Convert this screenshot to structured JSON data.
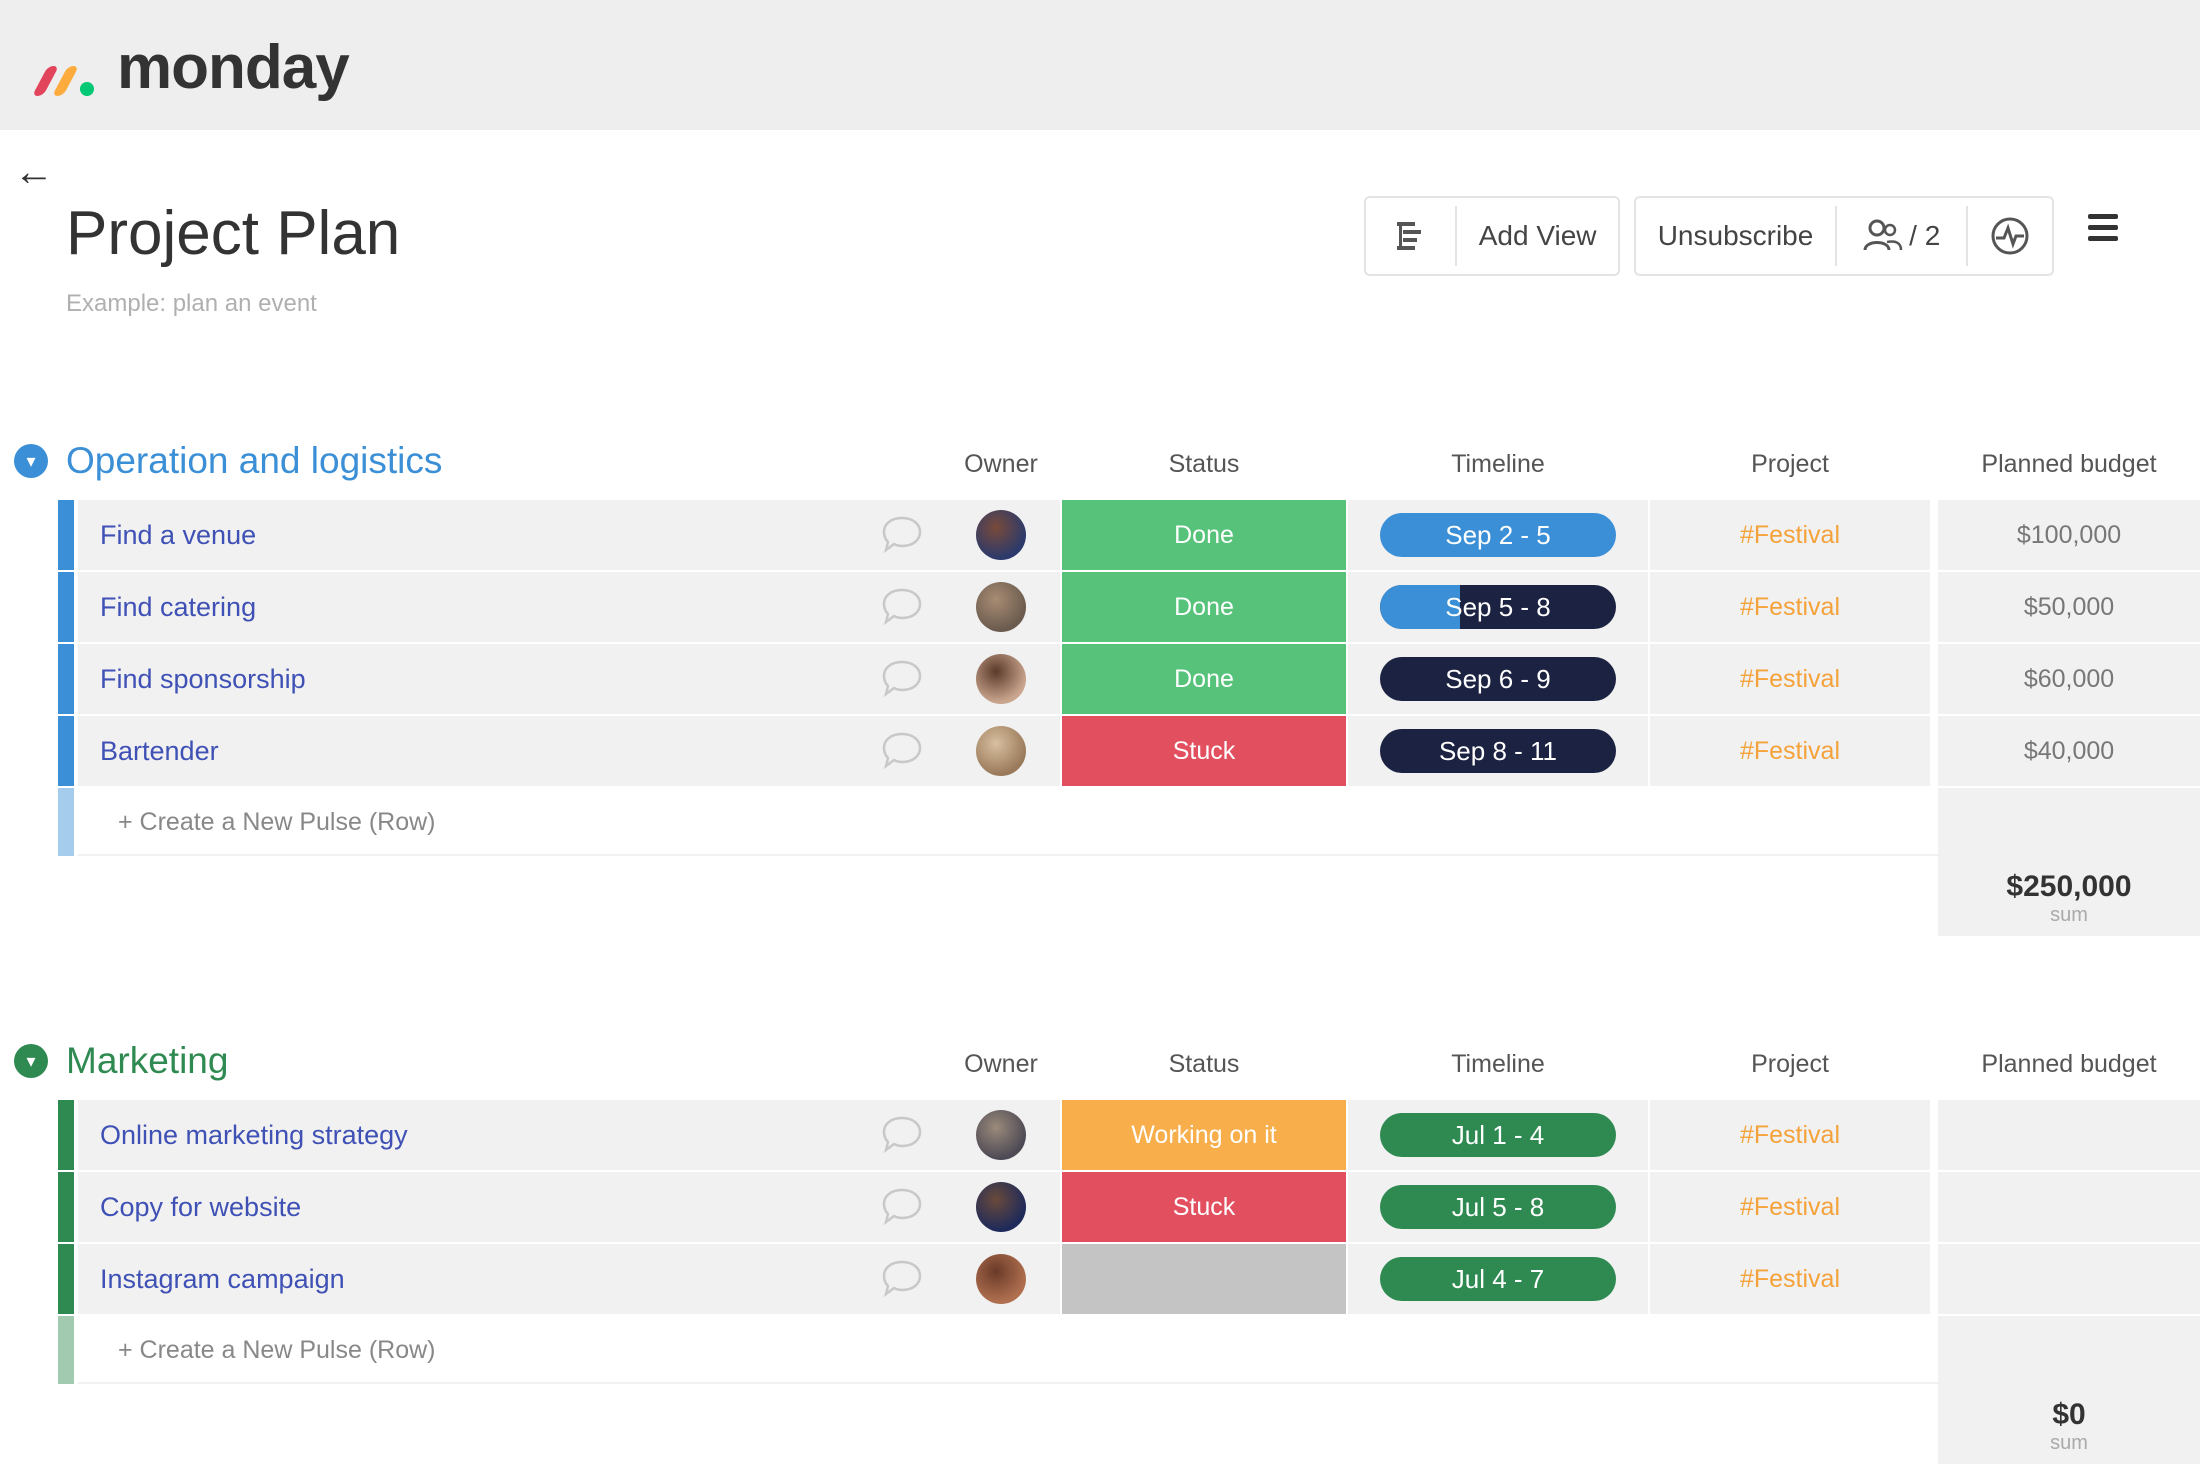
{
  "app": {
    "logo_text": "monday"
  },
  "header": {
    "back_label": "←",
    "title": "Project Plan",
    "subtitle": "Example: plan an event",
    "add_view_label": "Add View",
    "unsubscribe_label": "Unsubscribe",
    "members_label": "/ 2"
  },
  "columns": {
    "owner": "Owner",
    "status": "Status",
    "timeline": "Timeline",
    "project": "Project",
    "budget": "Planned budget"
  },
  "colors": {
    "done": "#57c27a",
    "stuck": "#e2505f",
    "working": "#f7ae4b",
    "empty": "#c4c4c4",
    "navy": "#1c2242",
    "blue": "#3a8fd6",
    "green": "#2f8a52",
    "group1": "#3a8fd6",
    "group2": "#2f8a52"
  },
  "groups": [
    {
      "title": "Operation and logistics",
      "rows": [
        {
          "name": "Find a venue",
          "status": "Done",
          "timeline": "Sep 2 - 5",
          "project": "#Festival",
          "budget": "$100,000"
        },
        {
          "name": "Find catering",
          "status": "Done",
          "timeline": "Sep 5 - 8",
          "project": "#Festival",
          "budget": "$50,000"
        },
        {
          "name": "Find sponsorship",
          "status": "Done",
          "timeline": "Sep 6 - 9",
          "project": "#Festival",
          "budget": "$60,000"
        },
        {
          "name": "Bartender",
          "status": "Stuck",
          "timeline": "Sep 8 - 11",
          "project": "#Festival",
          "budget": "$40,000"
        }
      ],
      "add_row_label": "+ Create a New Pulse (Row)",
      "sum_value": "$250,000",
      "sum_label": "sum"
    },
    {
      "title": "Marketing",
      "rows": [
        {
          "name": "Online marketing strategy",
          "status": "Working on it",
          "timeline": "Jul 1 - 4",
          "project": "#Festival",
          "budget": ""
        },
        {
          "name": "Copy for website",
          "status": "Stuck",
          "timeline": "Jul 5 - 8",
          "project": "#Festival",
          "budget": ""
        },
        {
          "name": "Instagram campaign",
          "status": "",
          "timeline": "Jul 4 - 7",
          "project": "#Festival",
          "budget": ""
        }
      ],
      "add_row_label": "+ Create a New Pulse (Row)",
      "sum_value": "$0",
      "sum_label": "sum"
    }
  ]
}
